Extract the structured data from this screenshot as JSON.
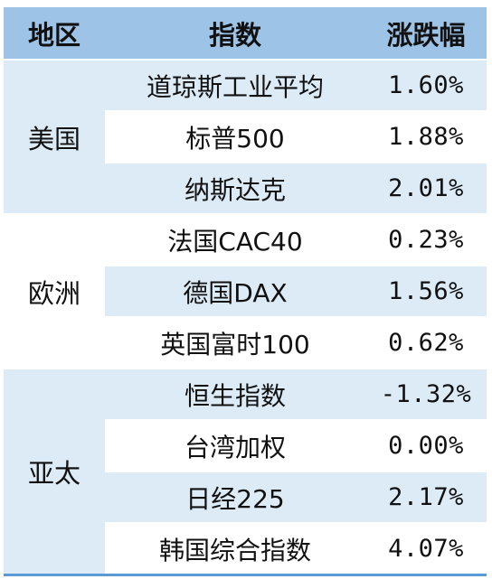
{
  "headers": {
    "region": "地区",
    "index": "指数",
    "change": "涨跌幅"
  },
  "groups": [
    {
      "region": "美国",
      "rows": [
        {
          "index": "道琼斯工业平均",
          "change": "1.60%"
        },
        {
          "index": "标普500",
          "change": "1.88%"
        },
        {
          "index": "纳斯达克",
          "change": "2.01%"
        }
      ]
    },
    {
      "region": "欧洲",
      "rows": [
        {
          "index": "法国CAC40",
          "change": "0.23%"
        },
        {
          "index": "德国DAX",
          "change": "1.56%"
        },
        {
          "index": "英国富时100",
          "change": "0.62%"
        }
      ]
    },
    {
      "region": "亚太",
      "rows": [
        {
          "index": "恒生指数",
          "change": "-1.32%"
        },
        {
          "index": "台湾加权",
          "change": "0.00%"
        },
        {
          "index": "日经225",
          "change": "2.17%"
        },
        {
          "index": "韩国综合指数",
          "change": "4.07%"
        }
      ]
    }
  ],
  "colors": {
    "header_bg": "#9DC3E6",
    "band_bg": "#DDEBF7",
    "bottom_rule": "#5B9BD5"
  }
}
